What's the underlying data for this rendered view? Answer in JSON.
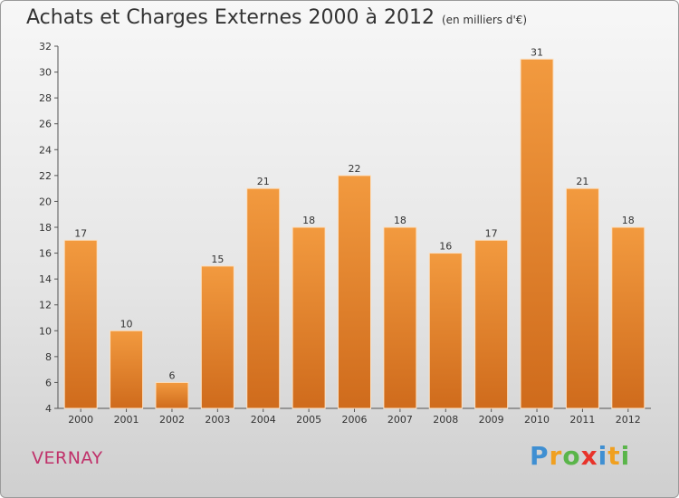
{
  "header": {
    "title": "Achats et Charges Externes 2000 à 2012",
    "subtitle": "(en milliers d'€)"
  },
  "footer": {
    "place": "VERNAY",
    "brand": {
      "letters": [
        "P",
        "r",
        "o",
        "x",
        "i",
        "t",
        "i"
      ],
      "colors": [
        "#3f8fd2",
        "#f0a020",
        "#5ab54a",
        "#e8332a",
        "#3f8fd2",
        "#f0a020",
        "#5ab54a"
      ]
    }
  },
  "chart_data": {
    "type": "bar",
    "title": "Achats et Charges Externes 2000 à 2012",
    "subtitle": "(en milliers d'€)",
    "categories": [
      "2000",
      "2001",
      "2002",
      "2003",
      "2004",
      "2005",
      "2006",
      "2007",
      "2008",
      "2009",
      "2010",
      "2011",
      "2012"
    ],
    "values": [
      17,
      10,
      6,
      15,
      21,
      18,
      22,
      18,
      16,
      17,
      31,
      21,
      18
    ],
    "ylim": [
      4,
      32
    ],
    "yticks": [
      4,
      6,
      8,
      10,
      12,
      14,
      16,
      18,
      20,
      22,
      24,
      26,
      28,
      30,
      32
    ],
    "grid": false,
    "data_labels": true,
    "bar_color": "#f29a3f",
    "bar_color_dark": "#cf6b1c"
  }
}
